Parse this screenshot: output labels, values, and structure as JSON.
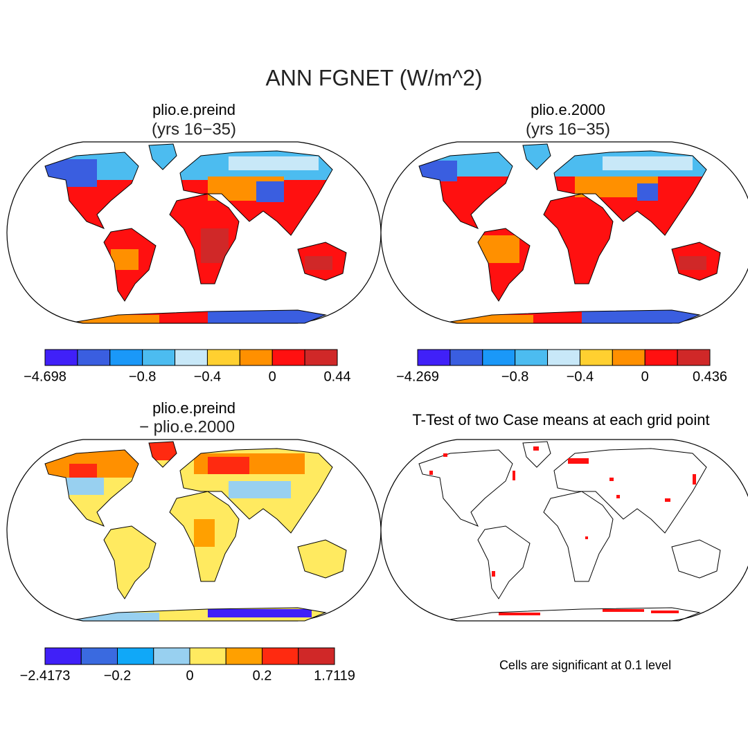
{
  "header": {
    "title": "ANN FGNET (W/m^2)"
  },
  "panels": [
    {
      "title": "plio.e.preind",
      "subtitle": "(yrs 16−35)",
      "colorbar": {
        "colors": [
          "#4020f8",
          "#3a5ee0",
          "#1a98f8",
          "#4cbcf0",
          "#c8e8f8",
          "#ffd030",
          "#ff9000",
          "#ff1010",
          "#d02828"
        ],
        "labels": [
          "−4.698",
          null,
          null,
          "−0.8",
          null,
          "−0.4",
          null,
          "0",
          null,
          "0.44"
        ]
      }
    },
    {
      "title": "plio.e.2000",
      "subtitle": "(yrs 16−35)",
      "colorbar": {
        "colors": [
          "#4020f8",
          "#3a5ee0",
          "#1a98f8",
          "#4cbcf0",
          "#c8e8f8",
          "#ffd030",
          "#ff9000",
          "#ff1010",
          "#d02828"
        ],
        "labels": [
          "−4.269",
          null,
          null,
          "−0.8",
          null,
          "−0.4",
          null,
          "0",
          null,
          "0.436"
        ]
      }
    },
    {
      "title": "plio.e.preind",
      "subtitle": "− plio.e.2000",
      "colorbar": {
        "colors": [
          "#4020f8",
          "#3a6ae0",
          "#10a8f8",
          "#98d0f0",
          "#ffea60",
          "#ffa000",
          "#ff2a10",
          "#d02828"
        ],
        "labels": [
          "−2.4173",
          null,
          "−0.2",
          null,
          "0",
          null,
          "0.2",
          null,
          "1.7119"
        ]
      }
    },
    {
      "title": "T-Test of two Case means at each grid point",
      "note": "Cells are significant at 0.1 level"
    }
  ]
}
